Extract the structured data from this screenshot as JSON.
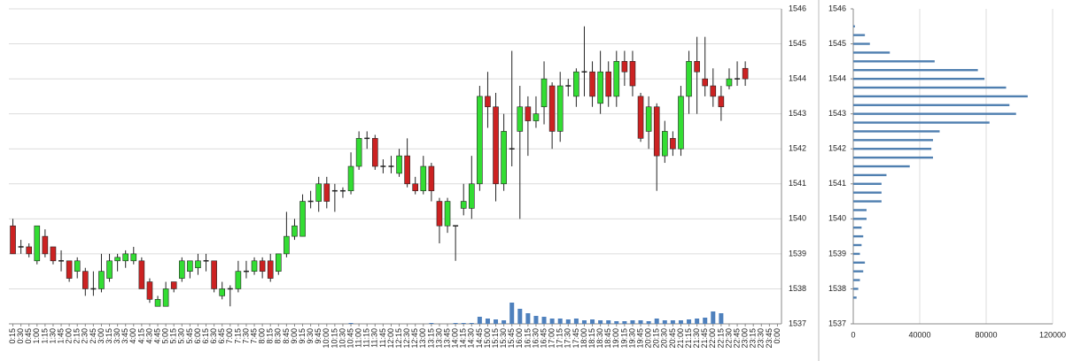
{
  "chart_data": [
    {
      "type": "candlestick",
      "categories": [
        "0:15",
        "0:30",
        "0:45",
        "1:00",
        "1:15",
        "1:30",
        "1:45",
        "2:00",
        "2:15",
        "2:30",
        "2:45",
        "3:00",
        "3:15",
        "3:30",
        "3:45",
        "4:00",
        "4:15",
        "4:30",
        "4:45",
        "5:00",
        "5:15",
        "5:30",
        "5:45",
        "6:00",
        "6:15",
        "6:30",
        "6:45",
        "7:00",
        "7:15",
        "7:30",
        "7:45",
        "8:00",
        "8:15",
        "8:30",
        "8:45",
        "9:00",
        "9:15",
        "9:30",
        "9:45",
        "10:00",
        "10:15",
        "10:30",
        "10:45",
        "11:00",
        "11:15",
        "11:30",
        "11:45",
        "12:00",
        "12:15",
        "12:30",
        "12:45",
        "13:00",
        "13:15",
        "13:30",
        "13:45",
        "14:00",
        "14:15",
        "14:30",
        "14:45",
        "15:00",
        "15:15",
        "15:30",
        "15:45",
        "16:00",
        "16:15",
        "16:30",
        "16:45",
        "17:00",
        "17:15",
        "17:30",
        "17:45",
        "18:00",
        "18:15",
        "18:30",
        "18:45",
        "19:00",
        "19:15",
        "19:30",
        "19:45",
        "20:00",
        "20:15",
        "20:30",
        "20:45",
        "21:00",
        "21:15",
        "21:30",
        "21:45",
        "22:00",
        "22:15",
        "22:30",
        "22:45",
        "23:00",
        "23:15",
        "23:30",
        "23:45",
        "0:00"
      ],
      "open": [
        1539.8,
        1539.2,
        1539.2,
        1538.8,
        1539.5,
        1539.2,
        1538.8,
        1538.8,
        1538.5,
        1538.5,
        1538.0,
        1538.0,
        1538.3,
        1538.8,
        1538.8,
        1538.8,
        1538.8,
        1538.2,
        1537.5,
        1537.5,
        1538.2,
        1538.3,
        1538.5,
        1538.6,
        1538.8,
        1538.8,
        1537.8,
        1538.0,
        1538.0,
        1538.5,
        1538.5,
        1538.8,
        1538.8,
        1538.5,
        1539.0,
        1539.5,
        1539.5,
        1540.5,
        1540.5,
        1541.0,
        1540.8,
        1540.8,
        1540.8,
        1541.5,
        1542.3,
        1542.3,
        1541.5,
        1541.5,
        1541.3,
        1541.8,
        1541.0,
        1540.8,
        1541.5,
        1540.5,
        1539.8,
        1539.8,
        1540.3,
        1540.3,
        1541.0,
        1543.5,
        1543.2,
        1541.0,
        1542.0,
        1542.5,
        1543.2,
        1542.8,
        1543.2,
        1543.8,
        1542.5,
        1543.8,
        1543.5,
        1544.2,
        1544.2,
        1543.3,
        1544.2,
        1543.5,
        1544.5,
        1544.5,
        1543.5,
        1542.5,
        1543.2,
        1541.8,
        1542.3,
        1542.0,
        1543.5,
        1544.5,
        1544.0,
        1543.8,
        1543.5,
        1543.8,
        1544.0,
        1544.3,
        null,
        null,
        null,
        null
      ],
      "high": [
        1540.0,
        1539.4,
        1539.3,
        1539.8,
        1539.7,
        1539.2,
        1539.1,
        1538.8,
        1538.9,
        1538.6,
        1538.5,
        1539.0,
        1539.0,
        1539.0,
        1539.1,
        1539.2,
        1538.9,
        1538.3,
        1537.8,
        1538.2,
        1538.2,
        1538.9,
        1538.8,
        1539.0,
        1539.0,
        1538.8,
        1538.2,
        1538.1,
        1538.8,
        1538.8,
        1538.9,
        1538.9,
        1539.0,
        1539.0,
        1540.2,
        1540.0,
        1540.7,
        1540.8,
        1541.2,
        1541.2,
        1541.0,
        1540.9,
        1541.9,
        1542.5,
        1542.5,
        1542.4,
        1541.7,
        1541.8,
        1542.0,
        1542.3,
        1541.2,
        1541.8,
        1541.6,
        1540.6,
        1540.6,
        1539.8,
        1541.0,
        1541.8,
        1543.8,
        1544.2,
        1543.6,
        1543.0,
        1544.8,
        1543.8,
        1543.5,
        1543.5,
        1544.5,
        1543.9,
        1544.2,
        1544.0,
        1544.3,
        1545.5,
        1544.5,
        1544.8,
        1544.5,
        1544.8,
        1544.8,
        1544.8,
        1543.6,
        1543.5,
        1543.3,
        1542.8,
        1542.5,
        1543.8,
        1544.8,
        1545.2,
        1545.2,
        1544.3,
        1543.8,
        1544.3,
        1544.5,
        1544.5,
        null,
        null,
        null,
        null
      ],
      "low": [
        1539.0,
        1539.0,
        1538.9,
        1538.7,
        1538.9,
        1538.7,
        1538.5,
        1538.2,
        1538.3,
        1537.8,
        1537.8,
        1537.9,
        1538.2,
        1538.5,
        1538.6,
        1538.7,
        1538.0,
        1537.6,
        1537.5,
        1537.5,
        1537.9,
        1538.2,
        1538.3,
        1538.4,
        1538.5,
        1537.9,
        1537.7,
        1537.5,
        1537.9,
        1538.3,
        1538.4,
        1538.3,
        1538.2,
        1538.4,
        1538.9,
        1539.4,
        1539.5,
        1540.3,
        1540.2,
        1540.3,
        1540.2,
        1540.6,
        1540.7,
        1541.4,
        1542.0,
        1541.4,
        1541.3,
        1541.3,
        1541.2,
        1540.9,
        1540.7,
        1540.7,
        1540.5,
        1539.3,
        1539.6,
        1538.8,
        1540.1,
        1540.0,
        1540.8,
        1542.6,
        1540.5,
        1540.8,
        1541.5,
        1540.0,
        1541.8,
        1542.6,
        1542.7,
        1542.0,
        1542.2,
        1543.5,
        1543.2,
        1543.5,
        1543.2,
        1543.0,
        1543.2,
        1543.2,
        1543.8,
        1543.5,
        1542.2,
        1542.0,
        1540.8,
        1541.6,
        1541.8,
        1541.8,
        1543.0,
        1543.0,
        1543.5,
        1543.2,
        1542.8,
        1543.7,
        1543.8,
        1543.8,
        null,
        null,
        null,
        null
      ],
      "close": [
        1539.0,
        1539.2,
        1539.0,
        1539.8,
        1539.0,
        1538.8,
        1538.8,
        1538.3,
        1538.8,
        1538.0,
        1538.0,
        1538.5,
        1538.8,
        1538.9,
        1539.0,
        1539.0,
        1538.0,
        1537.7,
        1537.7,
        1538.0,
        1538.0,
        1538.8,
        1538.8,
        1538.8,
        1538.8,
        1538.0,
        1538.0,
        1538.0,
        1538.5,
        1538.5,
        1538.8,
        1538.5,
        1538.3,
        1539.0,
        1539.5,
        1539.8,
        1540.5,
        1540.5,
        1541.0,
        1540.5,
        1540.8,
        1540.8,
        1541.5,
        1542.3,
        1542.3,
        1541.5,
        1541.5,
        1541.5,
        1541.8,
        1541.0,
        1540.8,
        1541.5,
        1540.8,
        1539.8,
        1540.5,
        1539.8,
        1540.5,
        1541.0,
        1543.5,
        1543.2,
        1541.0,
        1542.5,
        1542.0,
        1543.2,
        1542.8,
        1543.0,
        1544.0,
        1542.5,
        1543.8,
        1543.8,
        1544.2,
        1544.2,
        1543.5,
        1544.2,
        1543.5,
        1544.5,
        1544.2,
        1543.8,
        1542.3,
        1543.2,
        1541.8,
        1542.5,
        1542.0,
        1543.5,
        1544.5,
        1544.2,
        1543.8,
        1543.5,
        1543.2,
        1544.0,
        1544.0,
        1544.0,
        null,
        null,
        null,
        null
      ],
      "volume": [
        0,
        0,
        0,
        0,
        0,
        0,
        0,
        0,
        0,
        0,
        0,
        0,
        0,
        0,
        0,
        0,
        0,
        0,
        0,
        0,
        0,
        0,
        0,
        0,
        0,
        0,
        0,
        0,
        0,
        0,
        0,
        0,
        0,
        0,
        0,
        0,
        0,
        0,
        0,
        0,
        0,
        0,
        1000,
        0,
        0,
        0,
        0,
        0,
        0,
        0,
        0,
        0,
        1000,
        0,
        0,
        1000,
        1000,
        1000,
        8000,
        6000,
        5000,
        4000,
        24000,
        17000,
        12000,
        9000,
        8000,
        6000,
        6000,
        5000,
        6000,
        4000,
        5000,
        4000,
        4000,
        3000,
        3000,
        4000,
        4000,
        3000,
        6000,
        4000,
        4000,
        4000,
        5000,
        6000,
        7000,
        14000,
        12000,
        0,
        0,
        0,
        null,
        null,
        null,
        null
      ],
      "up_color": "#33dd33",
      "down_color": "#cc2222",
      "volume_color": "#4f81bd",
      "ylim": [
        1537,
        1546
      ],
      "yticks": [
        1537,
        1538,
        1539,
        1540,
        1541,
        1542,
        1543,
        1544,
        1545,
        1546
      ],
      "grid": true
    },
    {
      "type": "barh",
      "levels": [
        1545.5,
        1545.25,
        1545.0,
        1544.75,
        1544.5,
        1544.25,
        1544.0,
        1543.75,
        1543.5,
        1543.25,
        1543.0,
        1542.75,
        1542.5,
        1542.25,
        1542.0,
        1541.75,
        1541.5,
        1541.25,
        1541.0,
        1540.75,
        1540.5,
        1540.25,
        1540.0,
        1539.75,
        1539.5,
        1539.25,
        1539.0,
        1538.75,
        1538.5,
        1538.25,
        1538.0,
        1537.75
      ],
      "values": [
        1000,
        7000,
        10000,
        22000,
        49000,
        75000,
        79000,
        92000,
        105000,
        94000,
        98000,
        82000,
        52000,
        48000,
        47000,
        48000,
        34000,
        20000,
        17000,
        17000,
        17000,
        8000,
        8000,
        5000,
        6000,
        5000,
        4000,
        7000,
        6000,
        4000,
        3000,
        2000
      ],
      "color": "#4f7fb0",
      "xlim": [
        0,
        120000
      ],
      "xticks": [
        0,
        40000,
        80000,
        120000
      ],
      "ylim": [
        1537,
        1546
      ],
      "yticks": [
        1537,
        1538,
        1539,
        1540,
        1541,
        1542,
        1543,
        1544,
        1545,
        1546
      ],
      "grid": true
    }
  ]
}
